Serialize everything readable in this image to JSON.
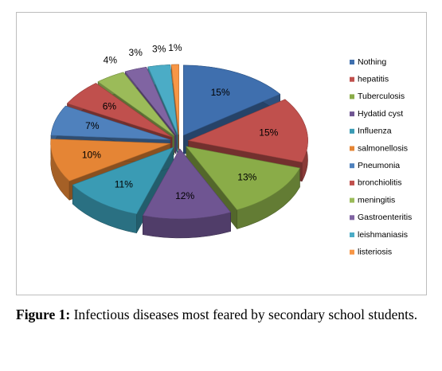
{
  "chart_data": {
    "type": "pie3d",
    "categories": [
      "Nothing",
      "hepatitis",
      "Tuberculosis",
      "Hydatid cyst",
      "Influenza",
      "salmonellosis",
      "Pneumonia",
      "bronchiolitis",
      "meningitis",
      "Gastroenteritis",
      "leishmaniasis",
      "listeriosis"
    ],
    "values": [
      15,
      15,
      13,
      12,
      11,
      10,
      7,
      6,
      4,
      3,
      3,
      1
    ],
    "value_labels": [
      "15%",
      "15%",
      "13%",
      "12%",
      "11%",
      "10%",
      "7%",
      "6%",
      "4%",
      "3%",
      "3%",
      "1%"
    ],
    "colors": [
      "#3f6fae",
      "#c0504d",
      "#8aac48",
      "#6f5592",
      "#3a9bb4",
      "#e58535",
      "#4f81bd",
      "#c0504d",
      "#9bbb59",
      "#8064a2",
      "#4bacc6",
      "#f79646"
    ],
    "legend": "right"
  },
  "caption": {
    "label": "Figure 1:",
    "text": "Infectious diseases most feared by secondary school students."
  }
}
